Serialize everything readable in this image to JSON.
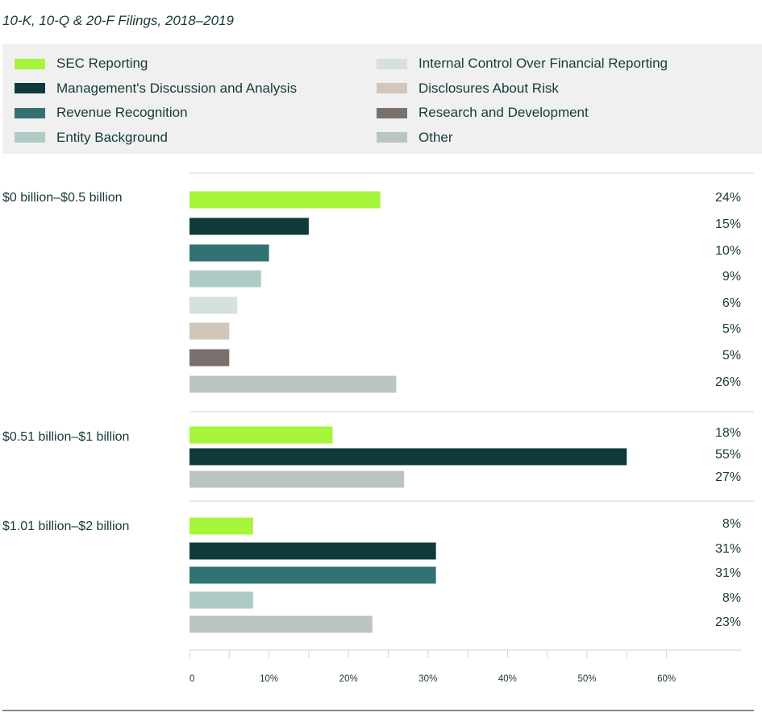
{
  "chart_data": {
    "type": "bar",
    "orientation": "horizontal",
    "title": "10-K, 10-Q & 20-F Filings, 2018–2019",
    "xlim": [
      0,
      70
    ],
    "x_ticks": [
      "0",
      "10%",
      "20%",
      "30%",
      "40%",
      "50%",
      "60%"
    ],
    "grid": false,
    "legend_placement": "top",
    "series_legend": [
      {
        "name": "SEC Reporting",
        "color": "#a6f53a"
      },
      {
        "name": "Management's Discussion and Analysis",
        "color": "#0f3a3a"
      },
      {
        "name": "Revenue Recognition",
        "color": "#337272"
      },
      {
        "name": "Entity Background",
        "color": "#aecbc5"
      },
      {
        "name": "Internal Control Over Financial Reporting",
        "color": "#d3e2df"
      },
      {
        "name": "Disclosures About Risk",
        "color": "#d0c7ba"
      },
      {
        "name": "Research and Development",
        "color": "#7a706c"
      },
      {
        "name": "Other",
        "color": "#bac5c2"
      }
    ],
    "groups": [
      {
        "label": "$0 billion–$0.5 billion",
        "bars": [
          {
            "series": 0,
            "value": 24,
            "label": "24%"
          },
          {
            "series": 1,
            "value": 15,
            "label": "15%"
          },
          {
            "series": 2,
            "value": 10,
            "label": "10%"
          },
          {
            "series": 3,
            "value": 9,
            "label": "9%"
          },
          {
            "series": 4,
            "value": 6,
            "label": "6%"
          },
          {
            "series": 5,
            "value": 5,
            "label": "5%"
          },
          {
            "series": 6,
            "value": 5,
            "label": "5%"
          },
          {
            "series": 7,
            "value": 26,
            "label": "26%"
          }
        ]
      },
      {
        "label": "$0.51 billion–$1 billion",
        "bars": [
          {
            "series": 0,
            "value": 18,
            "label": "18%"
          },
          {
            "series": 1,
            "value": 55,
            "label": "55%"
          },
          {
            "series": 7,
            "value": 27,
            "label": "27%"
          }
        ]
      },
      {
        "label": "$1.01 billion–$2 billion",
        "bars": [
          {
            "series": 0,
            "value": 8,
            "label": "8%"
          },
          {
            "series": 1,
            "value": 31,
            "label": "31%"
          },
          {
            "series": 2,
            "value": 31,
            "label": "31%"
          },
          {
            "series": 3,
            "value": 8,
            "label": "8%"
          },
          {
            "series": 7,
            "value": 23,
            "label": "23%"
          }
        ]
      }
    ]
  }
}
